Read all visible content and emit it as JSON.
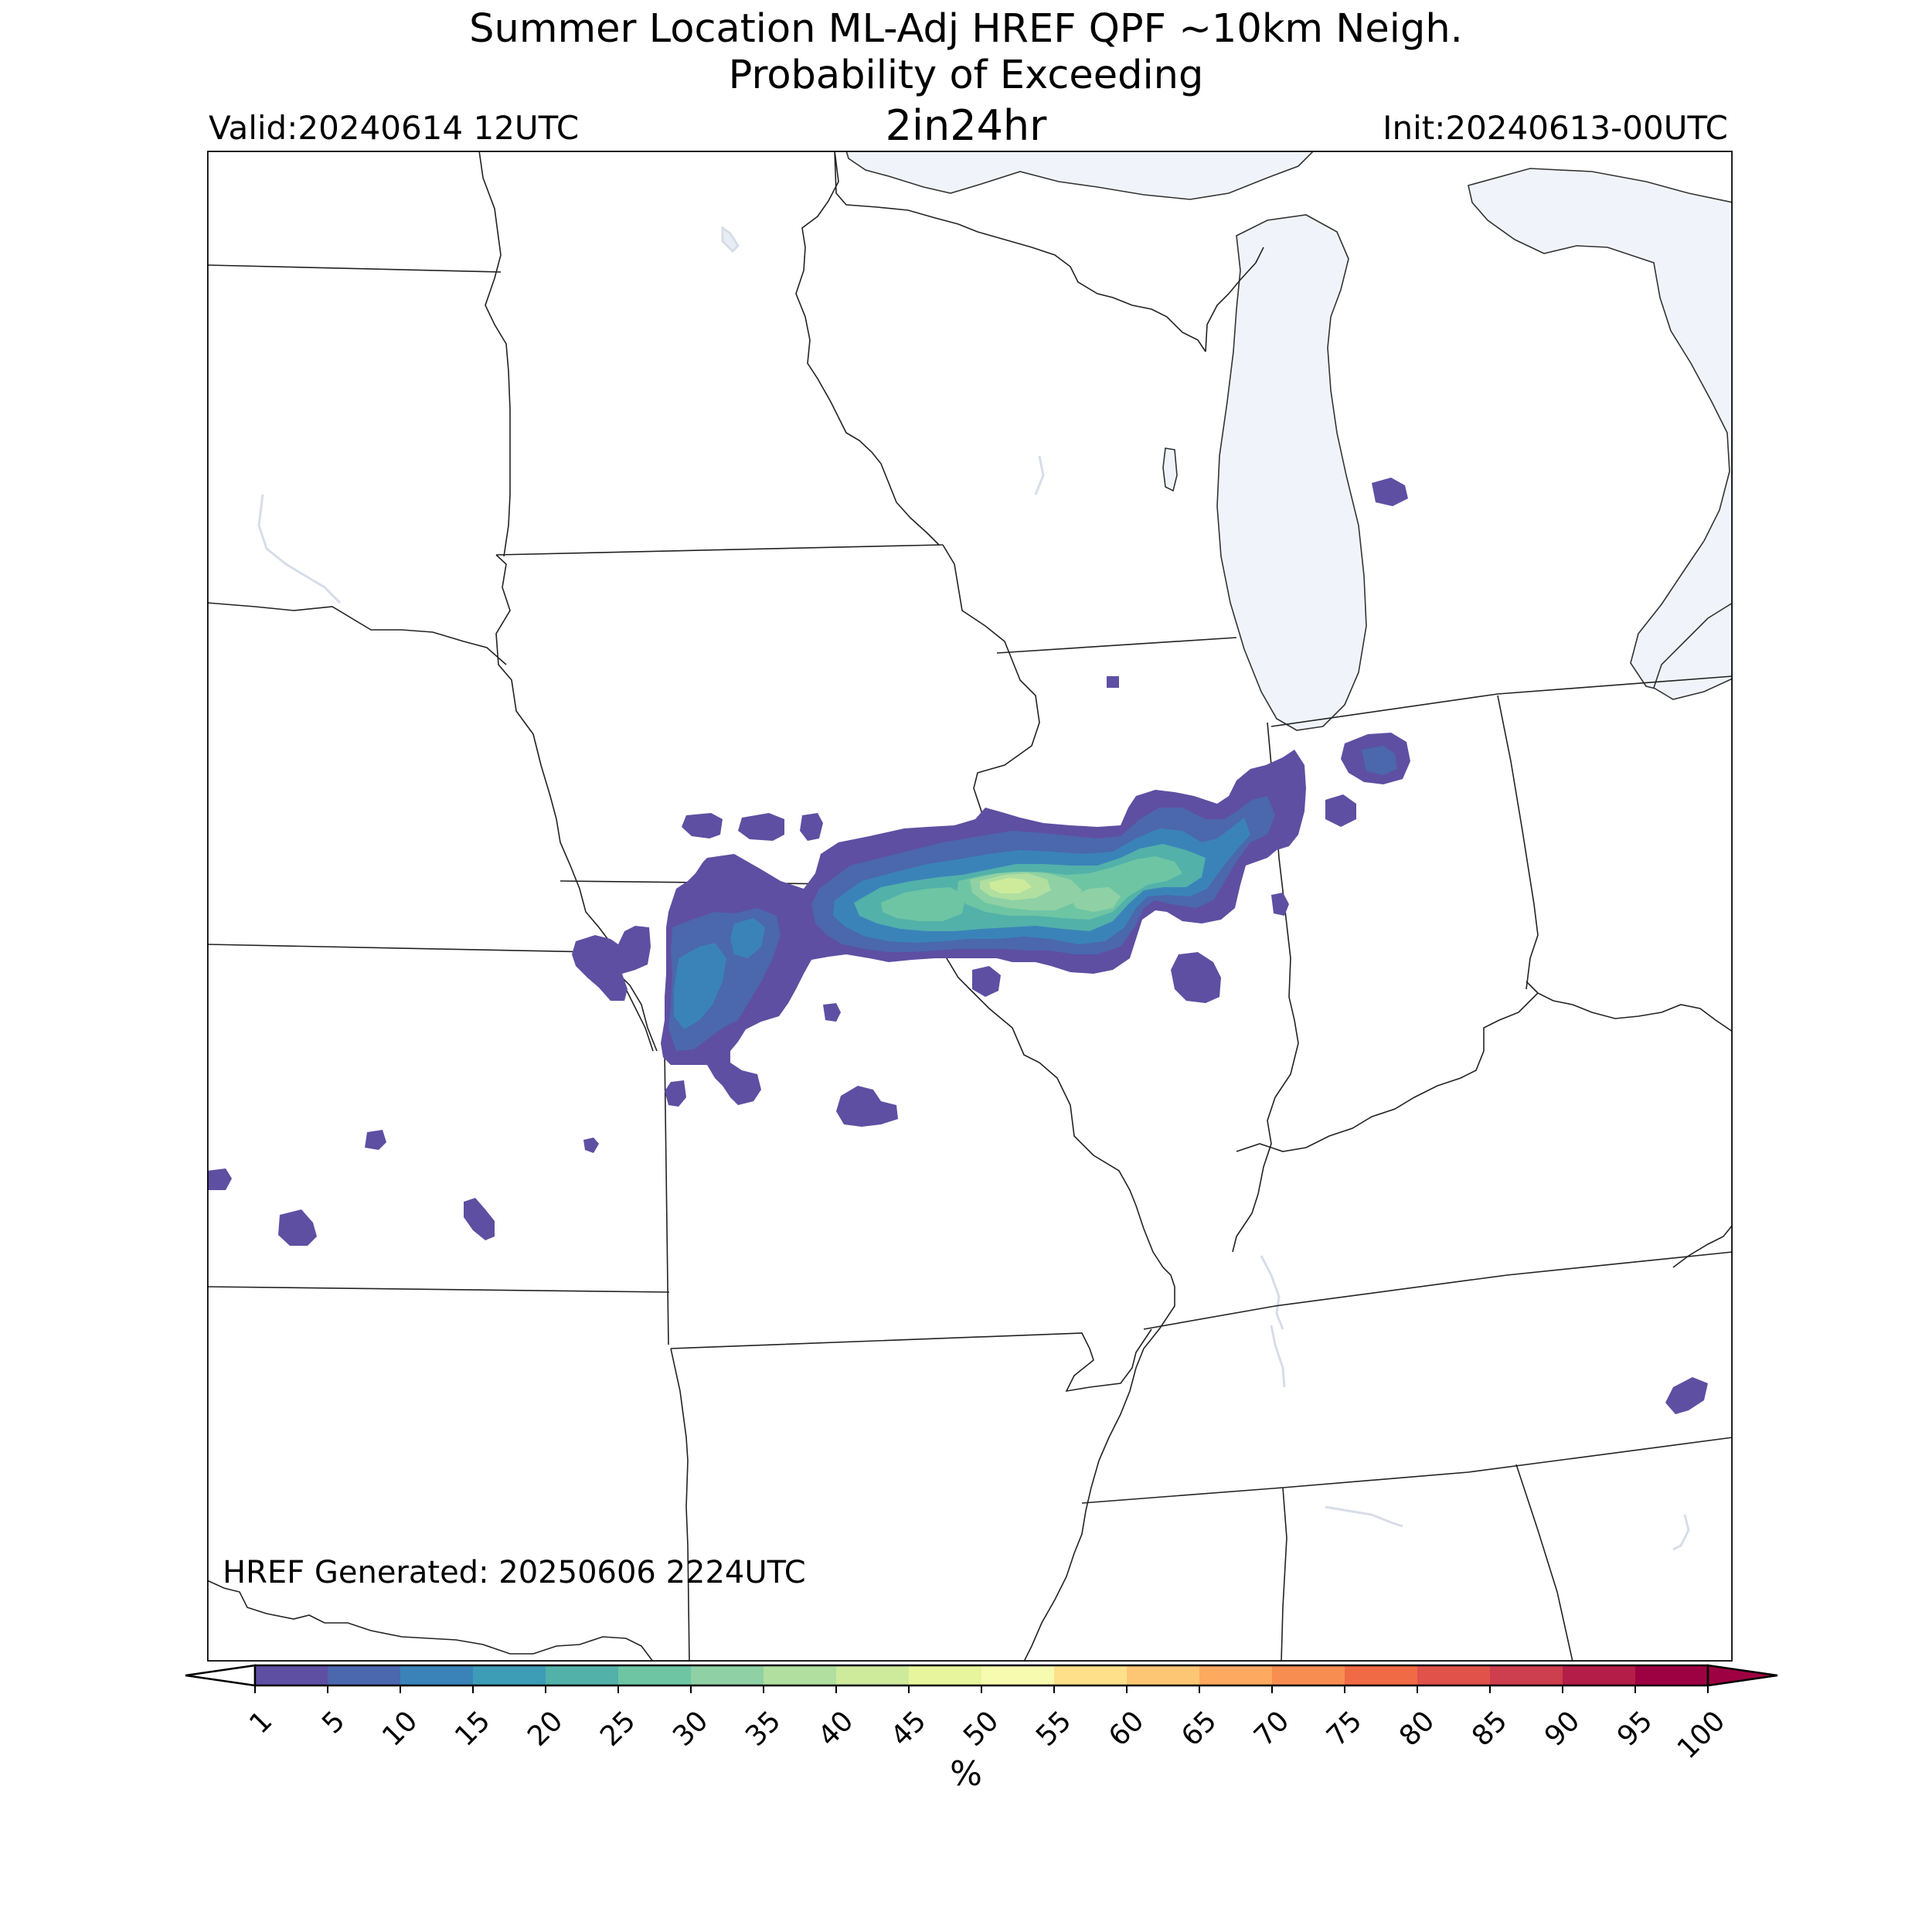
{
  "titles": {
    "line1": "Summer Location ML-Adj HREF QPF ~10km Neigh.",
    "line2": "Probability of Exceeding",
    "line3": "2in24hr",
    "valid": "Valid:20240614 12UTC",
    "init": "Init:20240613-00UTC",
    "generated": "HREF Generated: 20250606 2224UTC"
  },
  "colorbar": {
    "label": "%",
    "ticks": [
      "1",
      "5",
      "10",
      "15",
      "20",
      "25",
      "30",
      "35",
      "40",
      "45",
      "50",
      "55",
      "60",
      "65",
      "70",
      "75",
      "80",
      "85",
      "90",
      "95",
      "100"
    ],
    "colors": [
      "#5e4fa2",
      "#4b67ae",
      "#3a83b9",
      "#3d9db6",
      "#52b1a9",
      "#6ec5a4",
      "#8fd1a4",
      "#b1df9f",
      "#ceeb9c",
      "#e7f59c",
      "#f7fbb0",
      "#fee08b",
      "#fdc675",
      "#fda95f",
      "#f88d52",
      "#f06b45",
      "#e0524a",
      "#cd3e4e",
      "#b31d47",
      "#9e0142"
    ]
  },
  "colors": {
    "water": "#f0f4fa",
    "boundary": "#000000"
  }
}
